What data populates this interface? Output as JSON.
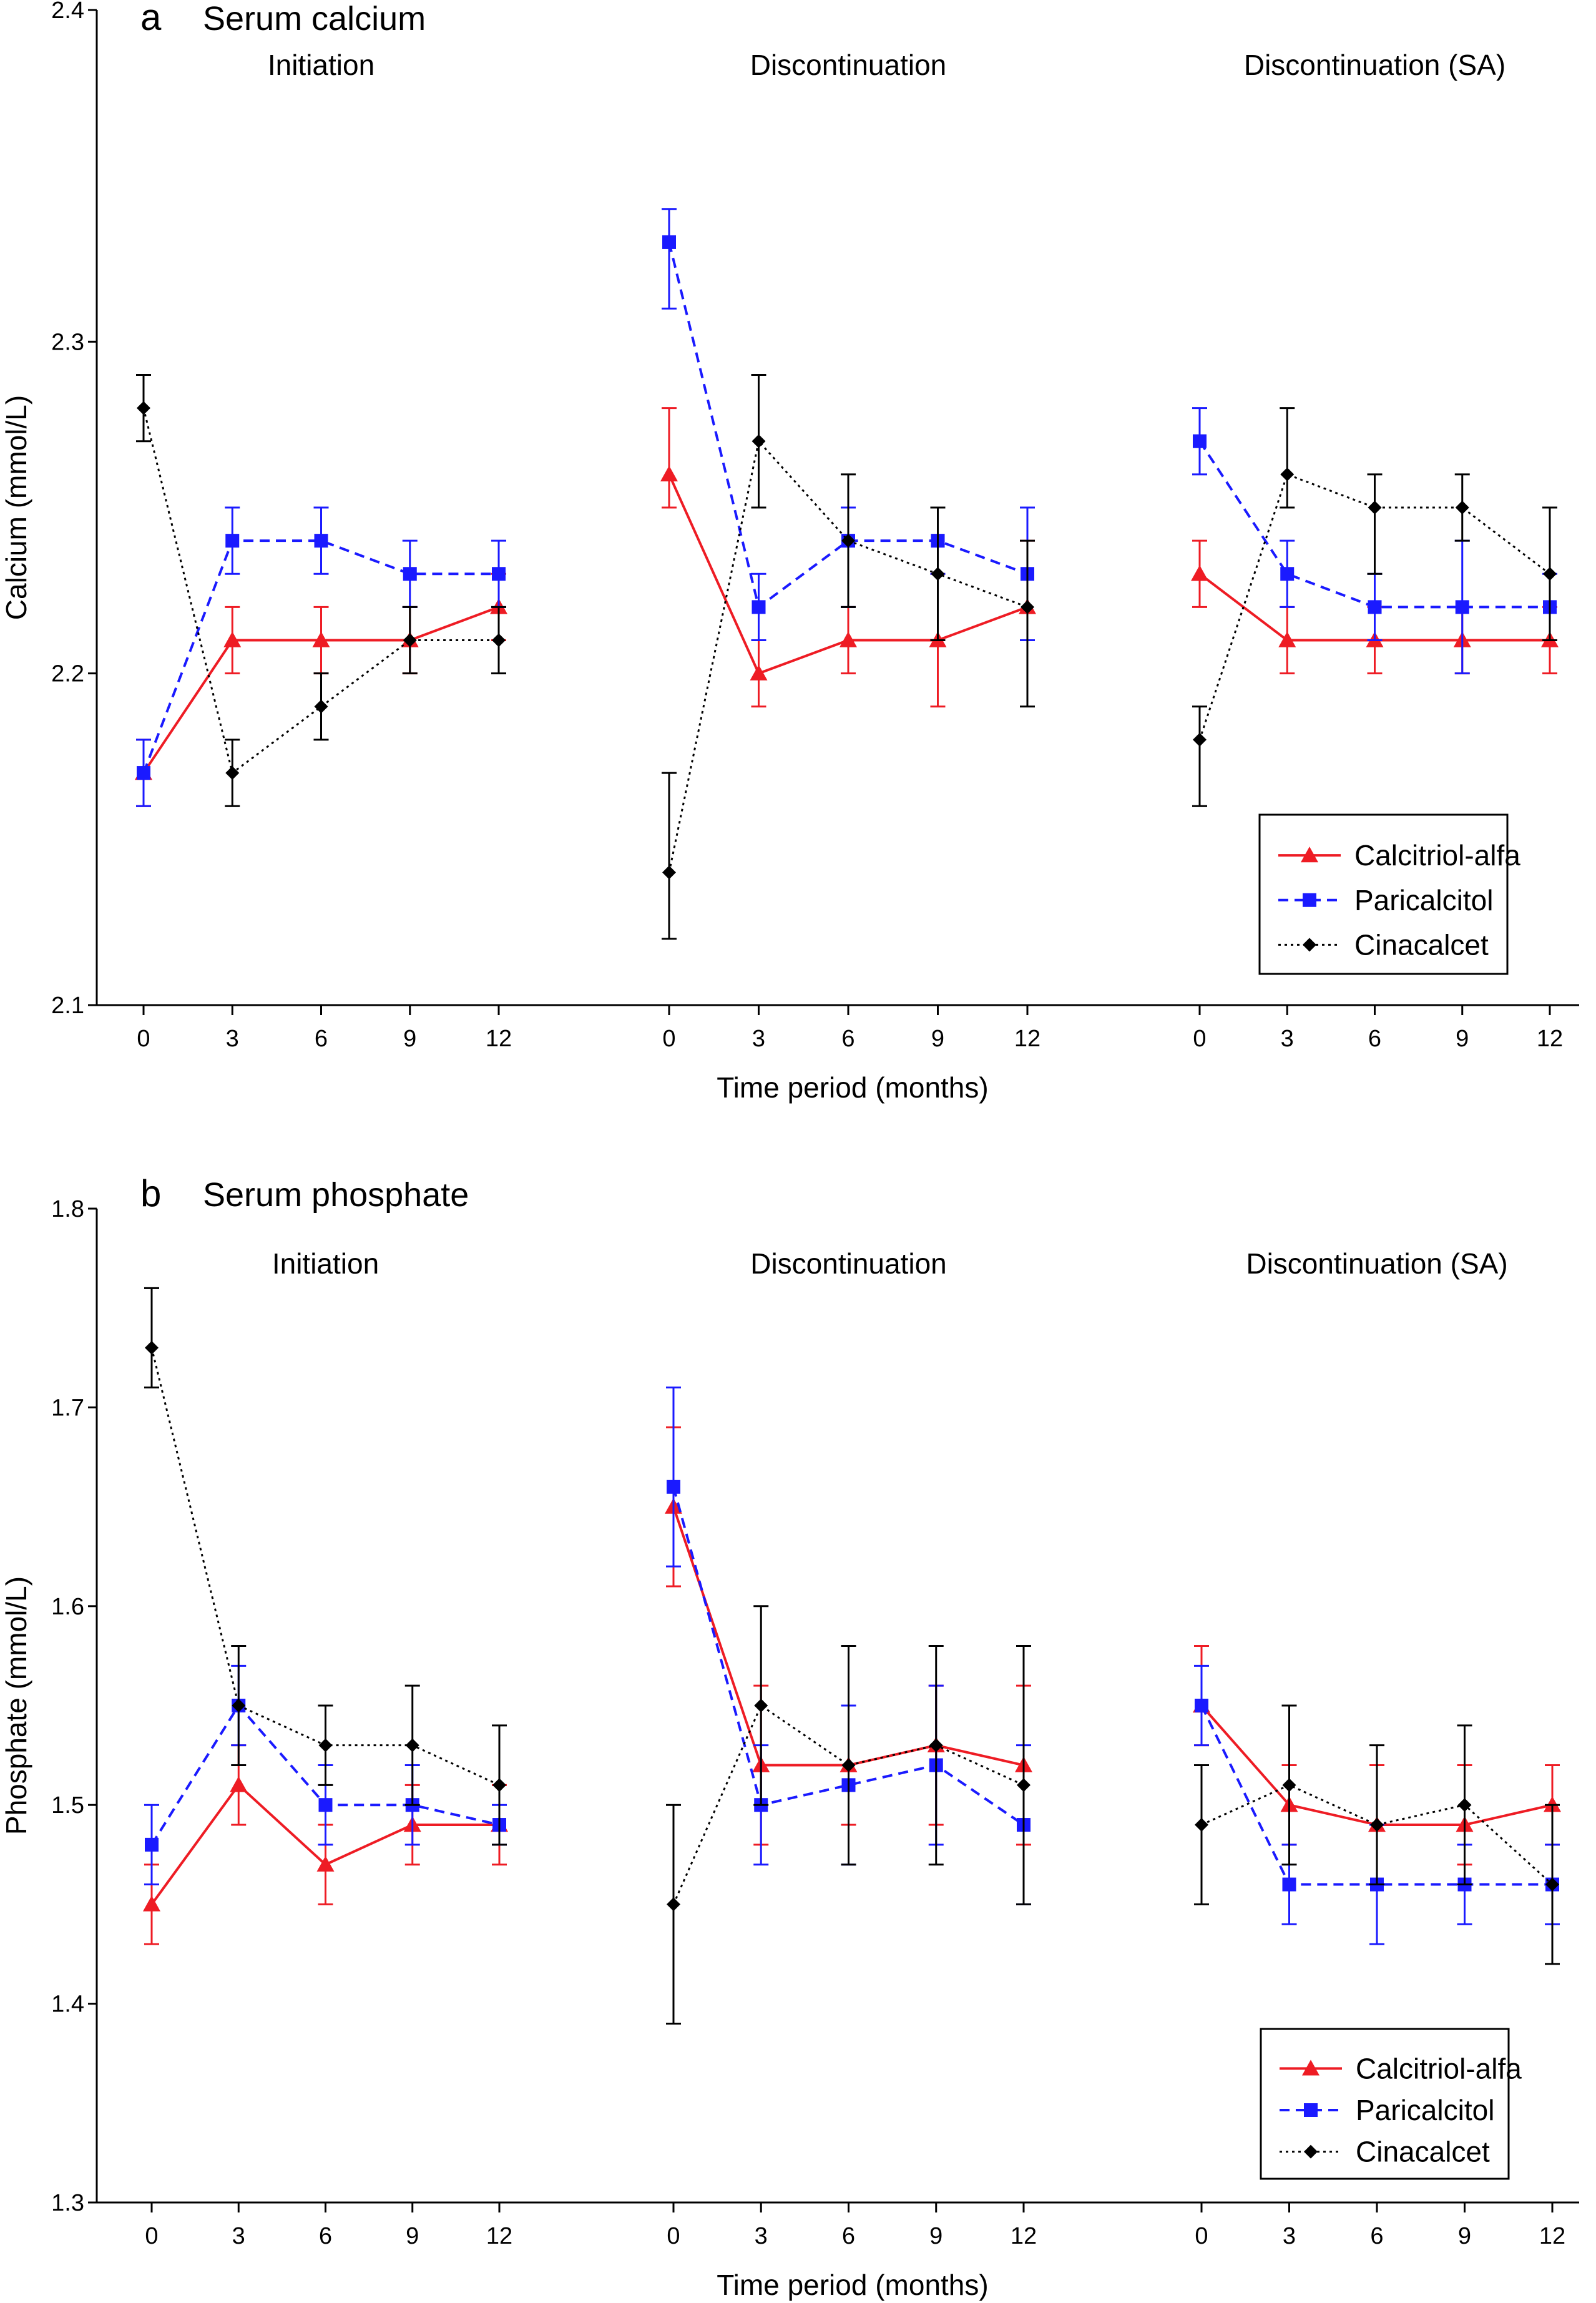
{
  "chart_data": [
    {
      "type": "line",
      "panel_letter": "a",
      "title": "Serum calcium",
      "ylabel": "Calcium (mmol/L)",
      "xlabel": "Time period (months)",
      "ylim": [
        2.1,
        2.4
      ],
      "yticks": [
        "2.1",
        "2.2",
        "2.3",
        "2.4"
      ],
      "error_bars": true,
      "legend_position": "bottom-right",
      "groups": [
        {
          "title": "Initiation",
          "x": [
            0,
            3,
            6,
            9,
            12
          ],
          "x_labels": [
            "0",
            "3",
            "6",
            "9",
            "12"
          ],
          "series": [
            {
              "name": "Calcitriol-alfa",
              "values": [
                2.17,
                2.21,
                2.21,
                2.21,
                2.22
              ],
              "lower": [
                2.16,
                2.2,
                2.2,
                2.2,
                2.21
              ],
              "upper": [
                2.18,
                2.22,
                2.22,
                2.22,
                2.23
              ]
            },
            {
              "name": "Paricalcitol",
              "values": [
                2.17,
                2.24,
                2.24,
                2.23,
                2.23
              ],
              "lower": [
                2.16,
                2.23,
                2.23,
                2.22,
                2.22
              ],
              "upper": [
                2.18,
                2.25,
                2.25,
                2.24,
                2.24
              ]
            },
            {
              "name": "Cinacalcet",
              "values": [
                2.28,
                2.17,
                2.19,
                2.21,
                2.21
              ],
              "lower": [
                2.27,
                2.16,
                2.18,
                2.2,
                2.2
              ],
              "upper": [
                2.29,
                2.18,
                2.2,
                2.22,
                2.22
              ]
            }
          ]
        },
        {
          "title": "Discontinuation",
          "x": [
            0,
            3,
            6,
            9,
            12
          ],
          "x_labels": [
            "0",
            "3",
            "6",
            "9",
            "12"
          ],
          "series": [
            {
              "name": "Calcitriol-alfa",
              "values": [
                2.26,
                2.2,
                2.21,
                2.21,
                2.22
              ],
              "lower": [
                2.25,
                2.19,
                2.2,
                2.19,
                2.21
              ],
              "upper": [
                2.28,
                2.21,
                2.22,
                2.23,
                2.24
              ]
            },
            {
              "name": "Paricalcitol",
              "values": [
                2.33,
                2.22,
                2.24,
                2.24,
                2.23
              ],
              "lower": [
                2.31,
                2.21,
                2.22,
                2.23,
                2.21
              ],
              "upper": [
                2.34,
                2.23,
                2.25,
                2.25,
                2.25
              ]
            },
            {
              "name": "Cinacalcet",
              "values": [
                2.14,
                2.27,
                2.24,
                2.23,
                2.22
              ],
              "lower": [
                2.12,
                2.25,
                2.22,
                2.21,
                2.19
              ],
              "upper": [
                2.17,
                2.29,
                2.26,
                2.25,
                2.24
              ]
            }
          ]
        },
        {
          "title": "Discontinuation (SA)",
          "x": [
            0,
            3,
            6,
            9,
            12
          ],
          "x_labels": [
            "0",
            "3",
            "6",
            "9",
            "12"
          ],
          "series": [
            {
              "name": "Calcitriol-alfa",
              "values": [
                2.23,
                2.21,
                2.21,
                2.21,
                2.21
              ],
              "lower": [
                2.22,
                2.2,
                2.2,
                2.2,
                2.2
              ],
              "upper": [
                2.24,
                2.22,
                2.22,
                2.22,
                2.22
              ]
            },
            {
              "name": "Paricalcitol",
              "values": [
                2.27,
                2.23,
                2.22,
                2.22,
                2.22
              ],
              "lower": [
                2.26,
                2.22,
                2.21,
                2.2,
                2.21
              ],
              "upper": [
                2.28,
                2.24,
                2.23,
                2.24,
                2.23
              ]
            },
            {
              "name": "Cinacalcet",
              "values": [
                2.18,
                2.26,
                2.25,
                2.25,
                2.23
              ],
              "lower": [
                2.16,
                2.25,
                2.23,
                2.24,
                2.21
              ],
              "upper": [
                2.19,
                2.28,
                2.26,
                2.26,
                2.25
              ]
            }
          ]
        }
      ]
    },
    {
      "type": "line",
      "panel_letter": "b",
      "title": "Serum phosphate",
      "ylabel": "Phosphate (mmol/L)",
      "xlabel": "Time period (months)",
      "ylim": [
        1.3,
        1.8
      ],
      "yticks": [
        "1.3",
        "1.4",
        "1.5",
        "1.6",
        "1.7",
        "1.8"
      ],
      "error_bars": true,
      "legend_position": "bottom-right",
      "groups": [
        {
          "title": "Initiation",
          "x": [
            0,
            3,
            6,
            9,
            12
          ],
          "x_labels": [
            "0",
            "3",
            "6",
            "9",
            "12"
          ],
          "series": [
            {
              "name": "Calcitriol-alfa",
              "values": [
                1.45,
                1.51,
                1.47,
                1.49,
                1.49
              ],
              "lower": [
                1.43,
                1.49,
                1.45,
                1.47,
                1.47
              ],
              "upper": [
                1.47,
                1.53,
                1.49,
                1.51,
                1.51
              ]
            },
            {
              "name": "Paricalcitol",
              "values": [
                1.48,
                1.55,
                1.5,
                1.5,
                1.49
              ],
              "lower": [
                1.46,
                1.53,
                1.48,
                1.48,
                1.48
              ],
              "upper": [
                1.5,
                1.57,
                1.52,
                1.52,
                1.5
              ]
            },
            {
              "name": "Cinacalcet",
              "values": [
                1.73,
                1.55,
                1.53,
                1.53,
                1.51
              ],
              "lower": [
                1.71,
                1.52,
                1.51,
                1.5,
                1.48
              ],
              "upper": [
                1.76,
                1.58,
                1.55,
                1.56,
                1.54
              ]
            }
          ]
        },
        {
          "title": "Discontinuation",
          "x": [
            0,
            3,
            6,
            9,
            12
          ],
          "x_labels": [
            "0",
            "3",
            "6",
            "9",
            "12"
          ],
          "series": [
            {
              "name": "Calcitriol-alfa",
              "values": [
                1.65,
                1.52,
                1.52,
                1.53,
                1.52
              ],
              "lower": [
                1.61,
                1.48,
                1.49,
                1.49,
                1.48
              ],
              "upper": [
                1.69,
                1.56,
                1.55,
                1.56,
                1.56
              ]
            },
            {
              "name": "Paricalcitol",
              "values": [
                1.66,
                1.5,
                1.51,
                1.52,
                1.49
              ],
              "lower": [
                1.62,
                1.47,
                1.47,
                1.48,
                1.45
              ],
              "upper": [
                1.71,
                1.53,
                1.55,
                1.56,
                1.53
              ]
            },
            {
              "name": "Cinacalcet",
              "values": [
                1.45,
                1.55,
                1.52,
                1.53,
                1.51
              ],
              "lower": [
                1.39,
                1.5,
                1.47,
                1.47,
                1.45
              ],
              "upper": [
                1.5,
                1.6,
                1.58,
                1.58,
                1.58
              ]
            }
          ]
        },
        {
          "title": "Discontinuation (SA)",
          "x": [
            0,
            3,
            6,
            9,
            12
          ],
          "x_labels": [
            "0",
            "3",
            "6",
            "9",
            "12"
          ],
          "series": [
            {
              "name": "Calcitriol-alfa",
              "values": [
                1.55,
                1.5,
                1.49,
                1.49,
                1.5
              ],
              "lower": [
                1.53,
                1.48,
                1.46,
                1.47,
                1.48
              ],
              "upper": [
                1.58,
                1.52,
                1.52,
                1.52,
                1.52
              ]
            },
            {
              "name": "Paricalcitol",
              "values": [
                1.55,
                1.46,
                1.46,
                1.46,
                1.46
              ],
              "lower": [
                1.53,
                1.44,
                1.43,
                1.44,
                1.44
              ],
              "upper": [
                1.57,
                1.48,
                1.49,
                1.48,
                1.48
              ]
            },
            {
              "name": "Cinacalcet",
              "values": [
                1.49,
                1.51,
                1.49,
                1.5,
                1.46
              ],
              "lower": [
                1.45,
                1.47,
                1.46,
                1.46,
                1.42
              ],
              "upper": [
                1.52,
                1.55,
                1.53,
                1.54,
                1.5
              ]
            }
          ]
        }
      ]
    }
  ],
  "legend": [
    {
      "name": "Calcitriol-alfa",
      "marker": "triangle",
      "line_style": "solid"
    },
    {
      "name": "Paricalcitol",
      "marker": "square",
      "line_style": "dashed"
    },
    {
      "name": "Cinacalcet",
      "marker": "diamond",
      "line_style": "dotted"
    }
  ],
  "colors": {
    "Calcitriol-alfa": "#ee1c24",
    "Paricalcitol": "#1a1aff",
    "Cinacalcet": "#000000",
    "axis": "#000000"
  }
}
